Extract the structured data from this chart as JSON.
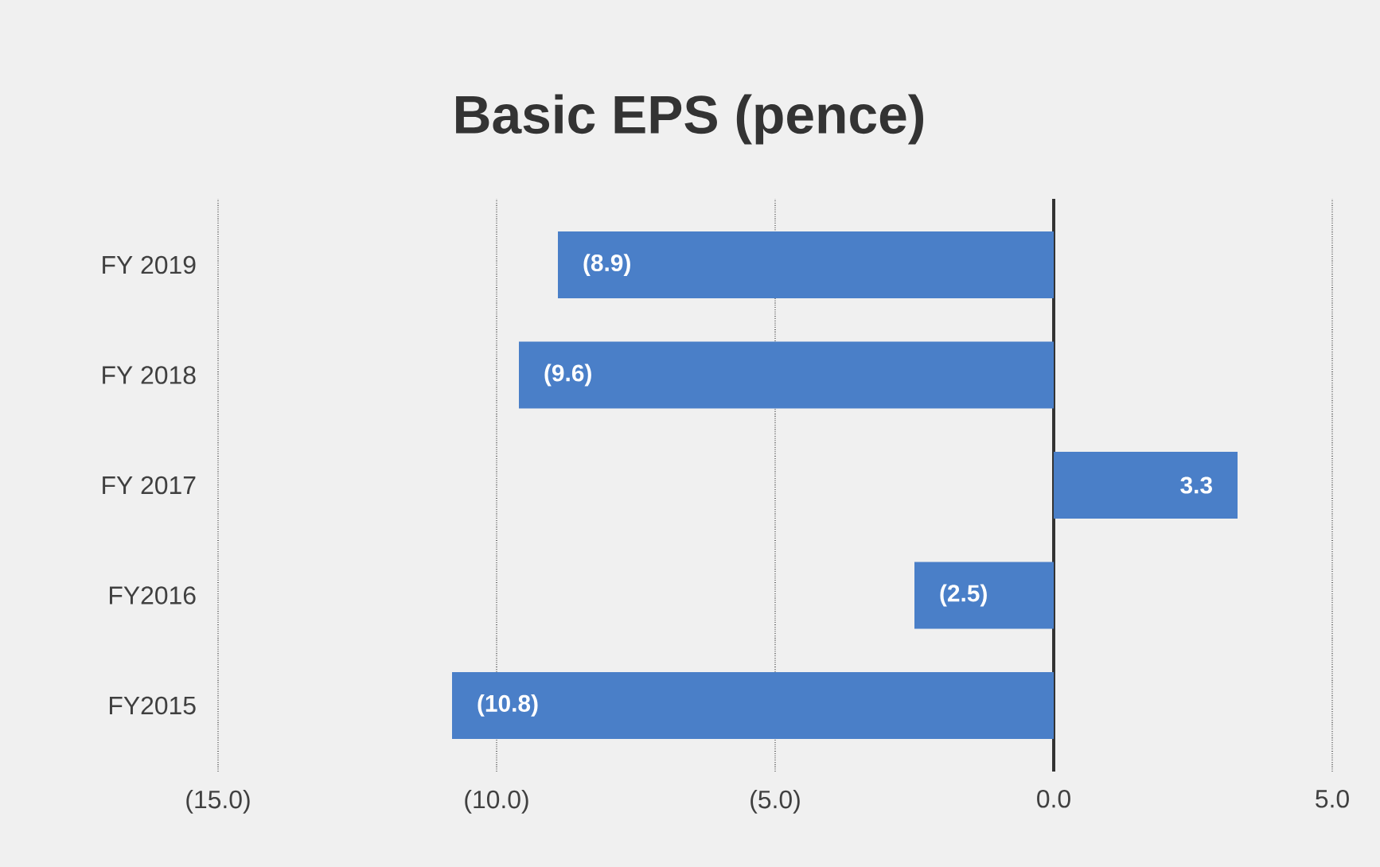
{
  "chart_data": {
    "type": "bar",
    "orientation": "horizontal",
    "title": "Basic EPS (pence)",
    "categories": [
      "FY 2019",
      "FY 2018",
      "FY 2017",
      "FY2016",
      "FY2015"
    ],
    "values": [
      -8.9,
      -9.6,
      3.3,
      -2.5,
      -10.8
    ],
    "value_labels": [
      "(8.9)",
      "(9.6)",
      "3.3",
      "(2.5)",
      "(10.8)"
    ],
    "color": "#4a7fc8",
    "xlim": [
      -15,
      5
    ],
    "xticks": [
      {
        "value": -15,
        "label": "(15.0)"
      },
      {
        "value": -10,
        "label": "(10.0)"
      },
      {
        "value": -5,
        "label": "(5.0)"
      },
      {
        "value": 0,
        "label": "0.0"
      },
      {
        "value": 5,
        "label": "5.0"
      }
    ],
    "grid": "x"
  }
}
